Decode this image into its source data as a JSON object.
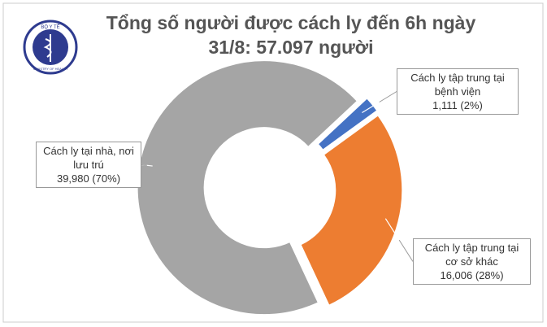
{
  "logo": {
    "top": "BỘ Y TẾ",
    "bottom": "MINISTRY OF HEALTH"
  },
  "chart_data": {
    "type": "donut",
    "title": [
      "Tổng số người được cách ly đến 6h ngày",
      "31/8: 57.097 người"
    ],
    "categories": [
      "Cách ly tập trung tại bệnh viện",
      "Cách ly tập trung tại cơ sở khác",
      "Cách ly tại nhà, nơi lưu trú"
    ],
    "values": [
      1111,
      16006,
      39980
    ],
    "value_labels": [
      "1,111 (2%)",
      "16,006 (28%)",
      "39,980 (70%)"
    ],
    "colors": [
      "#4472c4",
      "#ed7d31",
      "#a5a5a5"
    ]
  }
}
